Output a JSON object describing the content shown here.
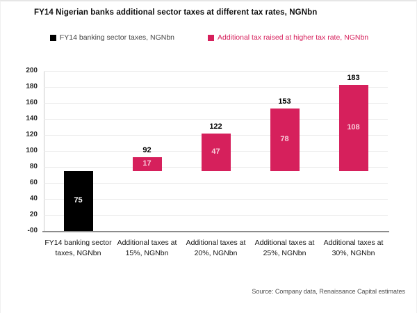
{
  "title": "FY14 Nigerian banks additional sector taxes at different tax rates, NGNbn",
  "legend": [
    {
      "label": "FY14 banking sector taxes, NGNbn",
      "swatch_color": "#000000",
      "text_color": "#454545"
    },
    {
      "label": "Additional tax raised at higher tax rate, NGNbn",
      "swatch_color": "#d6205c",
      "text_color": "#d6205c"
    }
  ],
  "source": "Source: Company data, Renaissance Capital estimates",
  "colors": {
    "base_series": "#000000",
    "additional_series": "#d6205c",
    "gridline": "#ebebeb",
    "axis": "#8c8c8c"
  },
  "chart_data": {
    "type": "bar",
    "subtype": "floating-segment (additional tax stacked on FY14 base of 75)",
    "title": "FY14 Nigerian banks additional sector taxes at different tax rates, NGNbn",
    "xlabel": "",
    "ylabel": "",
    "ylim": [
      0,
      200
    ],
    "ytick_step": 20,
    "ytick_labels": [
      "200",
      "180",
      "160",
      "140",
      "120",
      "100",
      "80",
      "60",
      "40",
      "20",
      "-00"
    ],
    "grid": true,
    "legend_position": "top",
    "categories": [
      "FY14 banking sector taxes, NGNbn",
      "Additional taxes at 15%, NGNbn",
      "Additional taxes at 20%, NGNbn",
      "Additional taxes at 25%, NGNbn",
      "Additional taxes at 30%, NGNbn"
    ],
    "bars": [
      {
        "series": "FY14 banking sector taxes, NGNbn",
        "base": 0,
        "top": 75,
        "segment_value": 75,
        "inner_label": "75",
        "outer_label": "",
        "color": "#000000",
        "inner_label_color": "#ffffff"
      },
      {
        "series": "Additional tax raised at higher tax rate, NGNbn",
        "base": 75,
        "top": 92,
        "segment_value": 17,
        "inner_label": "17",
        "outer_label": "92",
        "color": "#d6205c",
        "inner_label_color": "#f8cdda"
      },
      {
        "series": "Additional tax raised at higher tax rate, NGNbn",
        "base": 75,
        "top": 122,
        "segment_value": 47,
        "inner_label": "47",
        "outer_label": "122",
        "color": "#d6205c",
        "inner_label_color": "#f8cdda"
      },
      {
        "series": "Additional tax raised at higher tax rate, NGNbn",
        "base": 75,
        "top": 153,
        "segment_value": 78,
        "inner_label": "78",
        "outer_label": "153",
        "color": "#d6205c",
        "inner_label_color": "#f8cdda"
      },
      {
        "series": "Additional tax raised at higher tax rate, NGNbn",
        "base": 75,
        "top": 183,
        "segment_value": 108,
        "inner_label": "108",
        "outer_label": "183",
        "color": "#d6205c",
        "inner_label_color": "#f8cdda"
      }
    ]
  }
}
